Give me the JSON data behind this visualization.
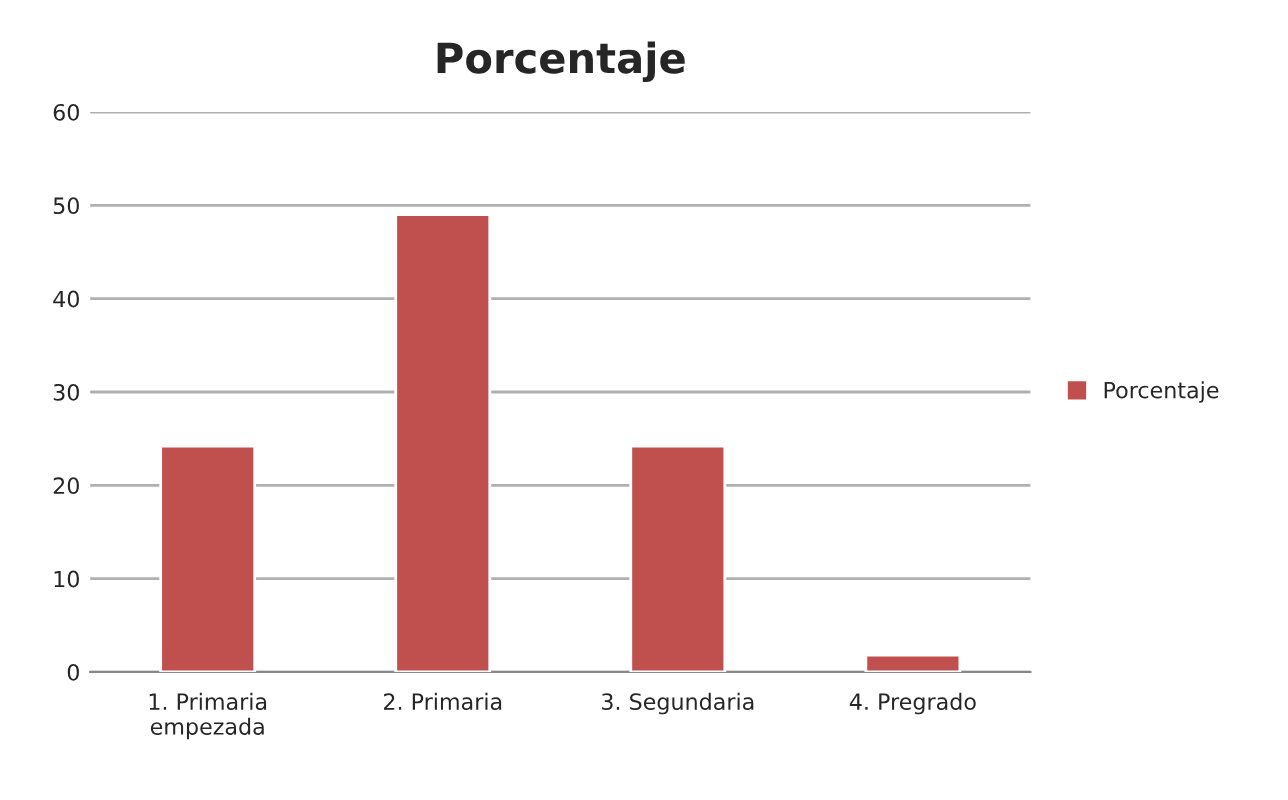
{
  "chart_data": {
    "type": "bar",
    "title": "Porcentaje",
    "categories": [
      "1. Primaria\nempezada",
      "2. Primaria",
      "3. Segundaria",
      "4. Pregrado"
    ],
    "series": [
      {
        "name": "Porcentaje",
        "color": "#c0504d",
        "values": [
          24.2,
          49,
          24.2,
          1.8
        ]
      }
    ],
    "ylim": [
      0,
      60
    ],
    "yticks": [
      0,
      10,
      20,
      30,
      40,
      50,
      60
    ],
    "grid": "y",
    "legend": "right"
  }
}
